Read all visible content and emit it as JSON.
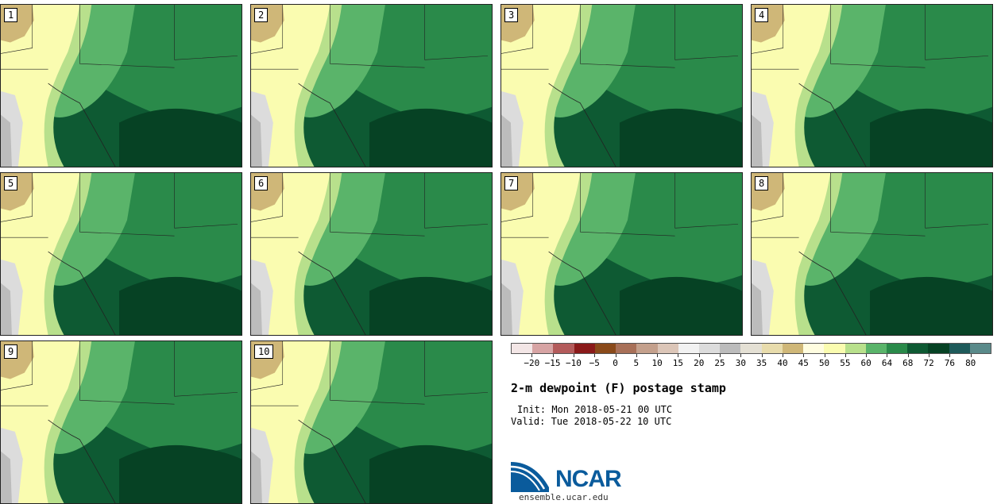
{
  "panels": [
    {
      "label": "1"
    },
    {
      "label": "2"
    },
    {
      "label": "3"
    },
    {
      "label": "4"
    },
    {
      "label": "5"
    },
    {
      "label": "6"
    },
    {
      "label": "7"
    },
    {
      "label": "8"
    },
    {
      "label": "9"
    },
    {
      "label": "10"
    }
  ],
  "colorbar": {
    "colors": [
      "#f3e6e6",
      "#d7a4a4",
      "#b35b5b",
      "#8a1a1a",
      "#8a4a1a",
      "#a87058",
      "#c4a08c",
      "#dcc6b8",
      "#f2f2f2",
      "#dcdcdc",
      "#bcbcbc",
      "#e4e0d4",
      "#e8dcac",
      "#cfb778",
      "#fffde0",
      "#fafcb0",
      "#b8e08c",
      "#5ab46a",
      "#2a8a4a",
      "#0e5a33",
      "#064224",
      "#1e5a5a",
      "#5a8a8a"
    ],
    "tick_labels": [
      "−20",
      "−15",
      "−10",
      "−5",
      "0",
      "5",
      "10",
      "15",
      "20",
      "25",
      "30",
      "35",
      "40",
      "45",
      "50",
      "55",
      "60",
      "64",
      "68",
      "72",
      "76",
      "80"
    ]
  },
  "title": "2-m dewpoint (F) postage stamp",
  "init": "Init: Mon 2018-05-21 00 UTC",
  "valid": "Valid: Tue 2018-05-22 10 UTC",
  "logo": {
    "name": "NCAR",
    "url": "ensemble.ucar.edu"
  }
}
